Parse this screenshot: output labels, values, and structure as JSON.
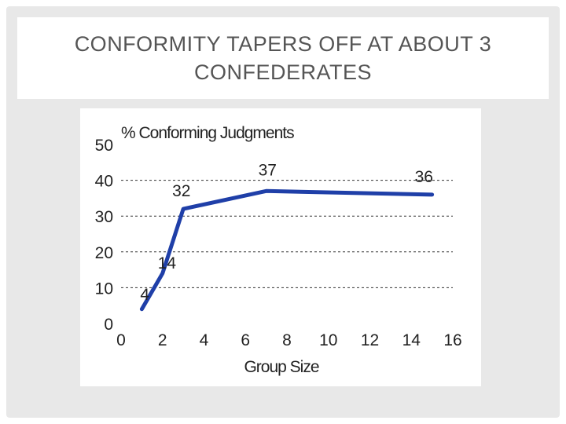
{
  "slide": {
    "title": "CONFORMITY TAPERS OFF AT ABOUT 3 CONFEDERATES"
  },
  "chart_data": {
    "type": "line",
    "title": "% Conforming Judgments",
    "xlabel": "Group Size",
    "ylabel": "",
    "xlim": [
      0,
      16
    ],
    "ylim": [
      0,
      50
    ],
    "xticks": [
      0,
      2,
      4,
      6,
      8,
      10,
      12,
      14,
      16
    ],
    "yticks": [
      0,
      10,
      20,
      30,
      40,
      50
    ],
    "grid": "horizontal dashed",
    "series": [
      {
        "name": "",
        "color": "#1f3fa8",
        "x": [
          1,
          2,
          3,
          7,
          15
        ],
        "y": [
          4,
          14,
          32,
          37,
          36
        ]
      }
    ],
    "data_labels": [
      {
        "text": "4",
        "x": 1,
        "y": 4
      },
      {
        "text": "14",
        "x": 2,
        "y": 14
      },
      {
        "text": "32",
        "x": 3,
        "y": 32
      },
      {
        "text": "37",
        "x": 7,
        "y": 37
      },
      {
        "text": "36",
        "x": 15,
        "y": 36
      }
    ]
  }
}
